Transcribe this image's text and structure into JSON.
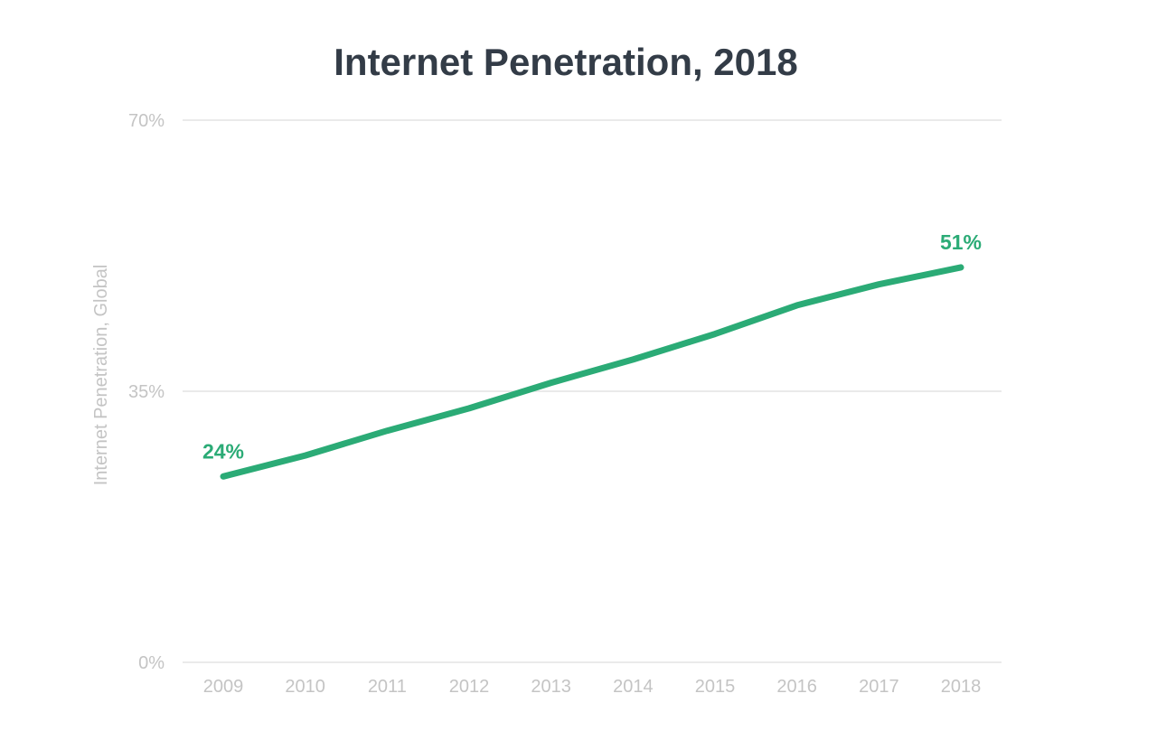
{
  "chart_data": {
    "type": "line",
    "title": "Internet Penetration, 2018",
    "ylabel": "Internet Penetration, Global",
    "xlabel": "",
    "x": [
      "2009",
      "2010",
      "2011",
      "2012",
      "2013",
      "2014",
      "2015",
      "2016",
      "2017",
      "2018"
    ],
    "series": [
      {
        "values": [
          24,
          26.7,
          29.9,
          32.8,
          36.1,
          39.1,
          42.4,
          46.1,
          48.8,
          51
        ],
        "color": "#2bab76"
      }
    ],
    "ylim": [
      0,
      70
    ],
    "y_ticks": [
      "0%",
      "35%",
      "70%"
    ],
    "y_tick_values": [
      0,
      35,
      70
    ],
    "data_labels": [
      {
        "index": 0,
        "text": "24%"
      },
      {
        "index": 9,
        "text": "51%"
      }
    ],
    "grid": true,
    "legend": "none"
  }
}
